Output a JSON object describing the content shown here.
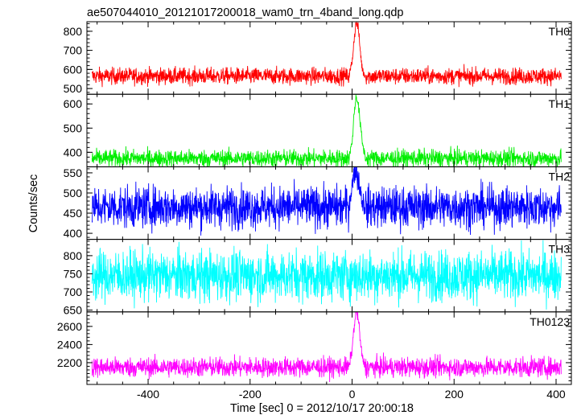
{
  "chart_data": {
    "type": "line",
    "title": "ae507044010_20121017200018_wam0_trn_4band_long.qdp",
    "xlabel": "Time [sec] 0 = 2012/10/17 20:00:18",
    "ylabel": "Counts/sec",
    "xlim": [
      -520,
      430
    ],
    "x_ticks": [
      "-400",
      "-200",
      "0",
      "200",
      "400"
    ],
    "x_tick_values": [
      -400,
      -200,
      0,
      200,
      400
    ],
    "x_range": [
      -510,
      410
    ],
    "grid": false,
    "panels": [
      {
        "name": "TH0",
        "color": "#ff0000",
        "ylim": [
          470,
          850
        ],
        "baseline": 565,
        "noise": 22,
        "burst": [
          [
            -6,
            565
          ],
          [
            0,
            640
          ],
          [
            4,
            760
          ],
          [
            8,
            850
          ],
          [
            12,
            820
          ],
          [
            16,
            700
          ],
          [
            20,
            600
          ],
          [
            26,
            565
          ]
        ],
        "ticks": [
          500,
          600,
          700,
          800
        ],
        "tick_labels": [
          "500",
          "600",
          "700",
          "800"
        ]
      },
      {
        "name": "TH1",
        "color": "#00ee00",
        "ylim": [
          340,
          640
        ],
        "baseline": 375,
        "noise": 18,
        "burst": [
          [
            -6,
            380
          ],
          [
            0,
            440
          ],
          [
            4,
            560
          ],
          [
            8,
            635
          ],
          [
            12,
            600
          ],
          [
            16,
            520
          ],
          [
            20,
            440
          ],
          [
            26,
            380
          ]
        ],
        "ticks": [
          400,
          500,
          600
        ],
        "tick_labels": [
          "400",
          "500",
          "600"
        ]
      },
      {
        "name": "TH2",
        "color": "#0000ff",
        "ylim": [
          385,
          565
        ],
        "baseline": 465,
        "noise": 26,
        "burst": [
          [
            -6,
            470
          ],
          [
            0,
            520
          ],
          [
            6,
            560
          ],
          [
            12,
            535
          ],
          [
            20,
            480
          ],
          [
            26,
            468
          ]
        ],
        "ticks": [
          400,
          450,
          500,
          550
        ],
        "tick_labels": [
          "400",
          "450",
          "500",
          "550"
        ]
      },
      {
        "name": "TH3",
        "color": "#00ffff",
        "ylim": [
          645,
          845
        ],
        "baseline": 745,
        "noise": 35,
        "burst": [],
        "ticks": [
          650,
          700,
          750,
          800
        ],
        "tick_labels": [
          "650",
          "700",
          "750",
          "800"
        ]
      },
      {
        "name": "TH0123",
        "color": "#ff00ff",
        "ylim": [
          1960,
          2760
        ],
        "baseline": 2150,
        "noise": 55,
        "burst": [
          [
            -6,
            2160
          ],
          [
            0,
            2350
          ],
          [
            4,
            2600
          ],
          [
            8,
            2760
          ],
          [
            12,
            2700
          ],
          [
            16,
            2450
          ],
          [
            20,
            2250
          ],
          [
            26,
            2160
          ]
        ],
        "ticks": [
          2200,
          2400,
          2600
        ],
        "tick_labels": [
          "2200",
          "2400",
          "2600"
        ]
      }
    ]
  }
}
